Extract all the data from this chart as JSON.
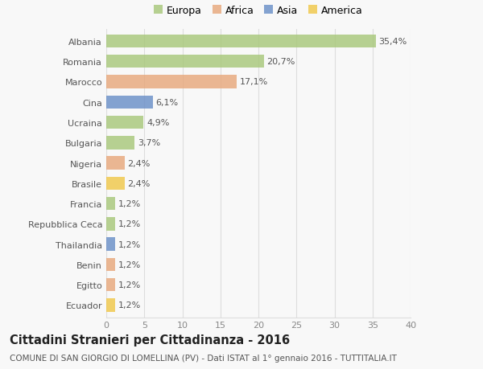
{
  "countries": [
    "Albania",
    "Romania",
    "Marocco",
    "Cina",
    "Ucraina",
    "Bulgaria",
    "Nigeria",
    "Brasile",
    "Francia",
    "Repubblica Ceca",
    "Thailandia",
    "Benin",
    "Egitto",
    "Ecuador"
  ],
  "values": [
    35.4,
    20.7,
    17.1,
    6.1,
    4.9,
    3.7,
    2.4,
    2.4,
    1.2,
    1.2,
    1.2,
    1.2,
    1.2,
    1.2
  ],
  "labels": [
    "35,4%",
    "20,7%",
    "17,1%",
    "6,1%",
    "4,9%",
    "3,7%",
    "2,4%",
    "2,4%",
    "1,2%",
    "1,2%",
    "1,2%",
    "1,2%",
    "1,2%",
    "1,2%"
  ],
  "continents": [
    "Europa",
    "Europa",
    "Africa",
    "Asia",
    "Europa",
    "Europa",
    "Africa",
    "America",
    "Europa",
    "Europa",
    "Asia",
    "Africa",
    "Africa",
    "America"
  ],
  "continent_colors": {
    "Europa": "#a8c87a",
    "Africa": "#e8a87c",
    "Asia": "#6a8fc8",
    "America": "#f0c84a"
  },
  "legend_order": [
    "Europa",
    "Africa",
    "Asia",
    "America"
  ],
  "title": "Cittadini Stranieri per Cittadinanza - 2016",
  "subtitle": "COMUNE DI SAN GIORGIO DI LOMELLINA (PV) - Dati ISTAT al 1° gennaio 2016 - TUTTITALIA.IT",
  "xlim": [
    0,
    40
  ],
  "xticks": [
    0,
    5,
    10,
    15,
    20,
    25,
    30,
    35,
    40
  ],
  "background_color": "#f8f8f8",
  "grid_color": "#dddddd",
  "bar_height": 0.65,
  "title_fontsize": 10.5,
  "subtitle_fontsize": 7.5,
  "tick_fontsize": 8,
  "label_fontsize": 8,
  "legend_fontsize": 9
}
